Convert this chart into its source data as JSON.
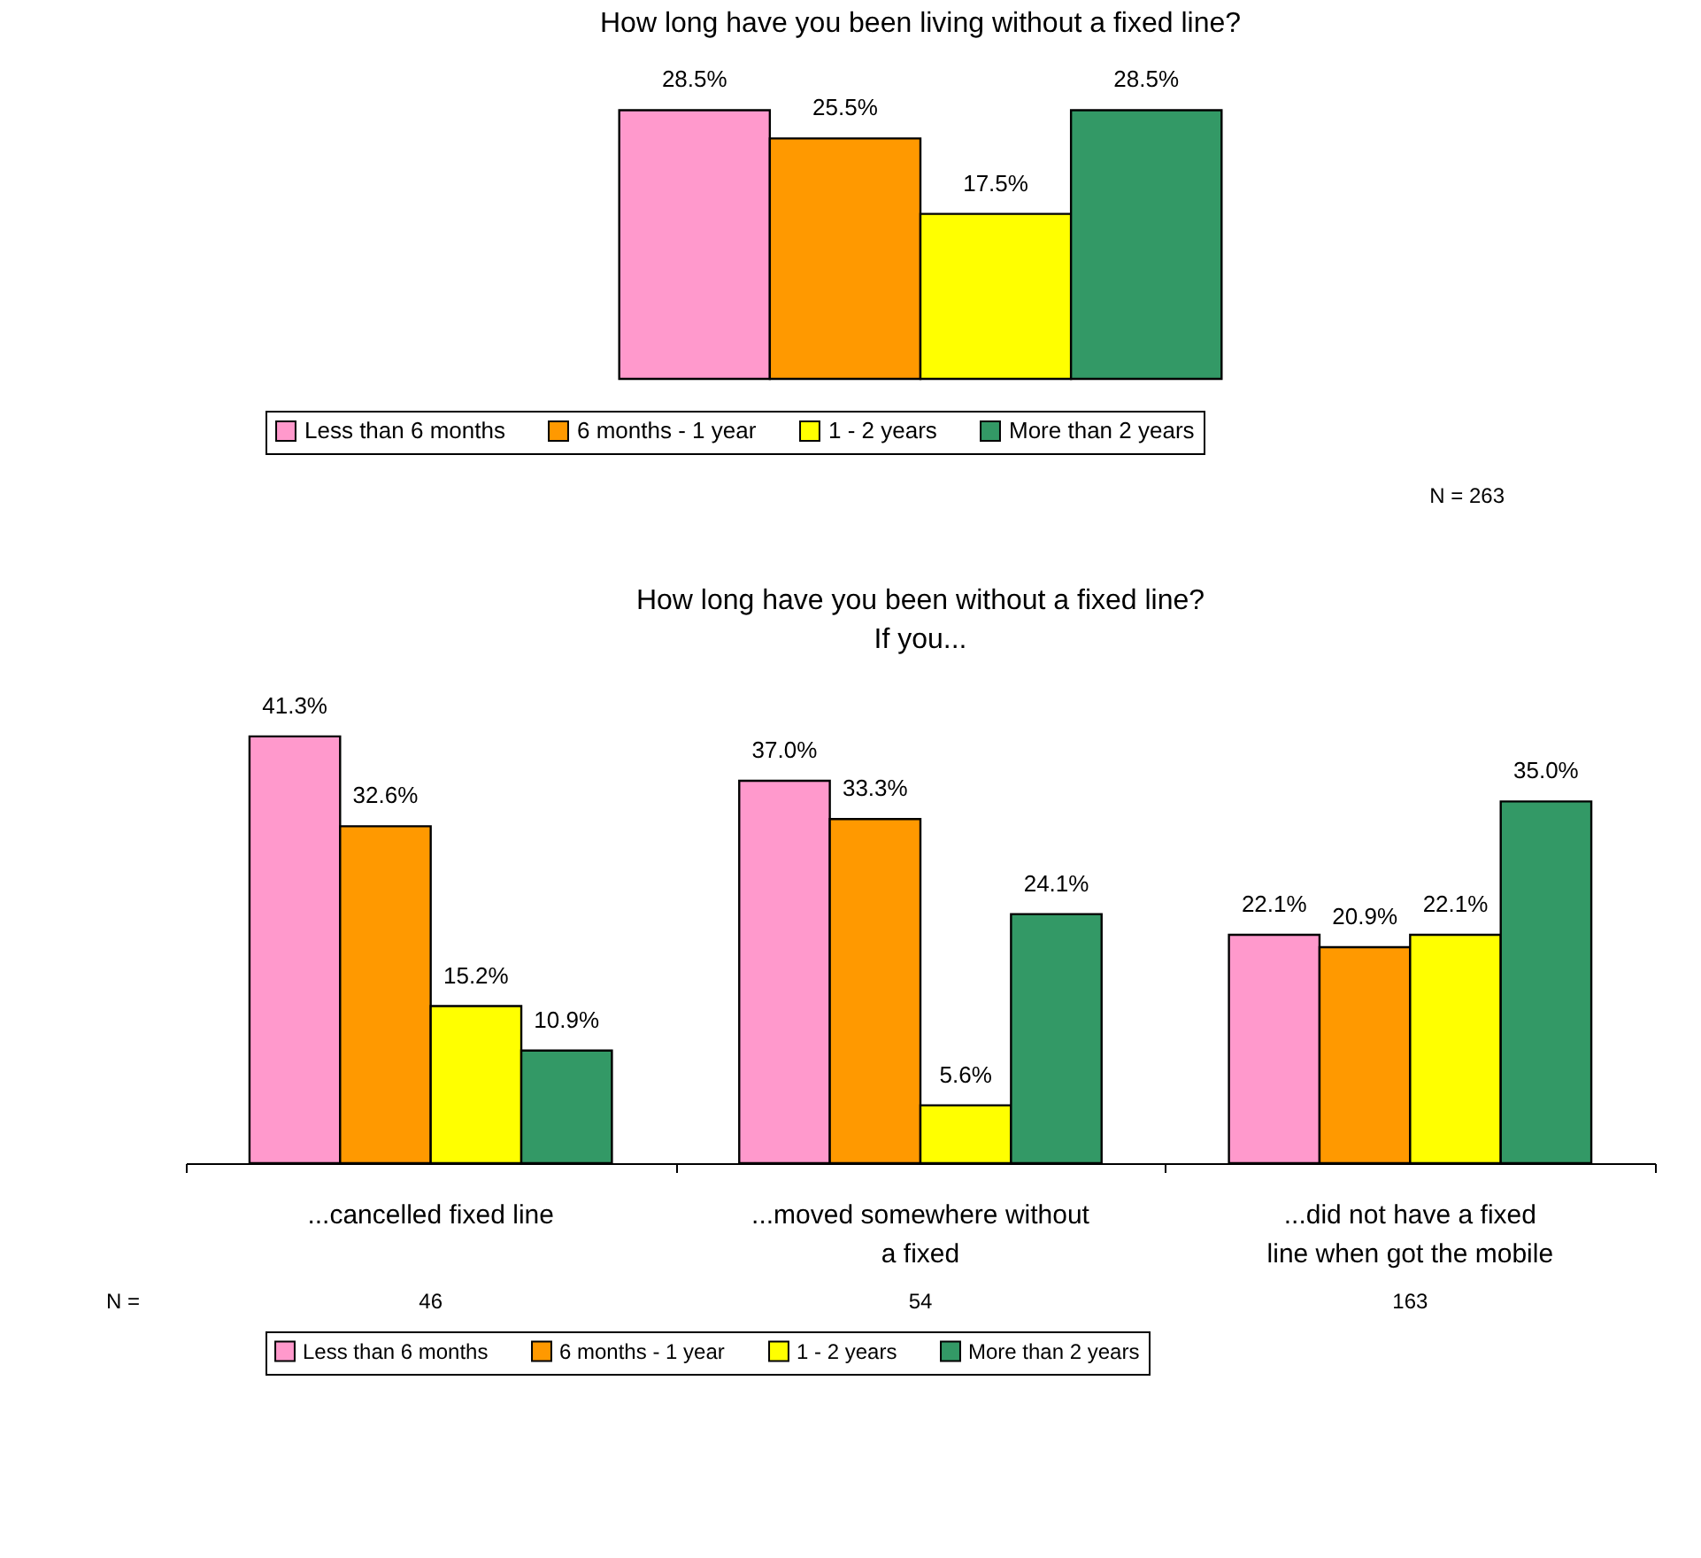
{
  "chart_data": [
    {
      "type": "bar",
      "title": "How long have you been living without a fixed line?",
      "categories": [
        null
      ],
      "legend": "bottom",
      "annotations": [
        "N = 263"
      ],
      "series": [
        {
          "name": "Less than 6 months",
          "color": "#ff99cc",
          "values": [
            28.5
          ],
          "value_labels": [
            "28.5%"
          ]
        },
        {
          "name": "6 months - 1 year",
          "color": "#ff9900",
          "values": [
            25.5
          ],
          "value_labels": [
            "25.5%"
          ]
        },
        {
          "name": "1 - 2 years",
          "color": "#ffff00",
          "values": [
            17.5
          ],
          "value_labels": [
            "17.5%"
          ]
        },
        {
          "name": "More than 2 years",
          "color": "#339966",
          "values": [
            28.5
          ],
          "value_labels": [
            "28.5%"
          ]
        }
      ]
    },
    {
      "type": "bar",
      "title": "How long have you been without a fixed line?",
      "subtitle": "If you...",
      "categories": [
        "...cancelled fixed line",
        "...moved somewhere without a fixed",
        "...did not have a fixed line when got the mobile"
      ],
      "legend": "bottom",
      "annotations": [
        "N =",
        "46",
        "54",
        "163"
      ],
      "series": [
        {
          "name": "Less than 6 months",
          "color": "#ff99cc",
          "values": [
            41.3,
            37.0,
            22.1
          ],
          "value_labels": [
            "41.3%",
            "37.0%",
            "22.1%"
          ]
        },
        {
          "name": "6 months - 1 year",
          "color": "#ff9900",
          "values": [
            32.6,
            33.3,
            20.9
          ],
          "value_labels": [
            "32.6%",
            "33.3%",
            "20.9%"
          ]
        },
        {
          "name": "1 - 2 years",
          "color": "#ffff00",
          "values": [
            15.2,
            5.6,
            22.1
          ],
          "value_labels": [
            "15.2%",
            "5.6%",
            "22.1%"
          ]
        },
        {
          "name": "More than 2 years",
          "color": "#339966",
          "values": [
            10.9,
            24.1,
            35.0
          ],
          "value_labels": [
            "10.9%",
            "24.1%",
            "35.0%"
          ]
        }
      ]
    }
  ]
}
